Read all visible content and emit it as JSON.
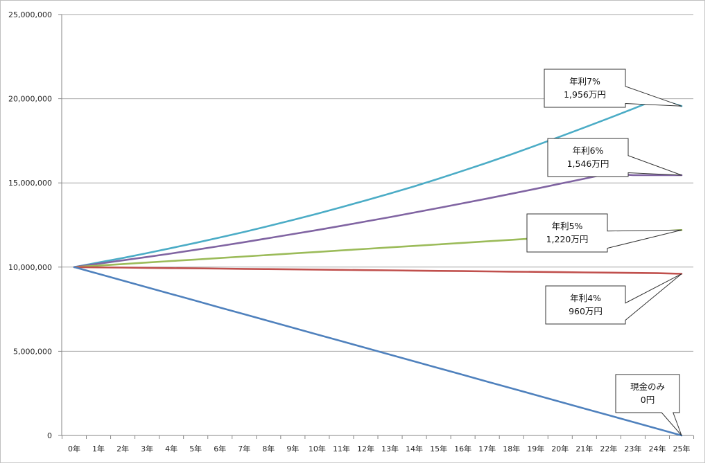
{
  "chart_data": {
    "type": "line",
    "title": "",
    "xlabel": "",
    "ylabel": "",
    "ylim": [
      0,
      25000000
    ],
    "y_ticks": [
      0,
      5000000,
      10000000,
      15000000,
      20000000,
      25000000
    ],
    "y_tick_labels": [
      "0",
      "5,000,000",
      "10,000,000",
      "15,000,000",
      "20,000,000",
      "25,000,000"
    ],
    "categories": [
      "0年",
      "1年",
      "2年",
      "3年",
      "4年",
      "5年",
      "6年",
      "7年",
      "8年",
      "9年",
      "10年",
      "11年",
      "12年",
      "13年",
      "14年",
      "15年",
      "16年",
      "17年",
      "18年",
      "19年",
      "20年",
      "21年",
      "22年",
      "23年",
      "24年",
      "25年"
    ],
    "grid": true,
    "legend": "none",
    "series": [
      {
        "key": "rate7",
        "color": "#4bacc6",
        "values": [
          10000000,
          10270000,
          10540000,
          10830000,
          11130000,
          11440000,
          11760000,
          12090000,
          12440000,
          12800000,
          13170000,
          13560000,
          13960000,
          14370000,
          14800000,
          15250000,
          15720000,
          16200000,
          16700000,
          17220000,
          17750000,
          18290000,
          18840000,
          19400000,
          19980000,
          19560000
        ]
      },
      {
        "key": "rate6",
        "color": "#8064a2",
        "values": [
          10000000,
          10200000,
          10400000,
          10600000,
          10810000,
          11030000,
          11250000,
          11480000,
          11720000,
          11960000,
          12200000,
          12450000,
          12710000,
          12970000,
          13240000,
          13510000,
          13790000,
          14070000,
          14360000,
          14650000,
          14950000,
          15250000,
          15560000,
          15460000,
          15460000,
          15460000
        ]
      },
      {
        "key": "rate5",
        "color": "#9bbb59",
        "values": [
          10000000,
          10090000,
          10180000,
          10270000,
          10360000,
          10450000,
          10540000,
          10630000,
          10720000,
          10810000,
          10900000,
          10990000,
          11080000,
          11170000,
          11260000,
          11350000,
          11440000,
          11530000,
          11620000,
          11710000,
          11800000,
          11880000,
          11960000,
          12040000,
          12120000,
          12200000
        ]
      },
      {
        "key": "rate4",
        "color": "#c0504d",
        "values": [
          10000000,
          9985000,
          9970000,
          9955000,
          9940000,
          9925000,
          9910000,
          9895000,
          9880000,
          9865000,
          9850000,
          9835000,
          9820000,
          9805000,
          9790000,
          9775000,
          9760000,
          9745000,
          9730000,
          9715000,
          9700000,
          9685000,
          9670000,
          9655000,
          9640000,
          9600000
        ]
      },
      {
        "key": "cash",
        "color": "#4f81bd",
        "values": [
          10000000,
          9600000,
          9200000,
          8800000,
          8400000,
          8000000,
          7600000,
          7200000,
          6800000,
          6400000,
          6000000,
          5600000,
          5200000,
          4800000,
          4400000,
          4000000,
          3600000,
          3200000,
          2800000,
          2400000,
          2000000,
          1600000,
          1200000,
          800000,
          400000,
          0
        ]
      }
    ],
    "annotations": [
      {
        "series": "rate7",
        "line1": "年利7%",
        "line2": "1,956万円",
        "point_x": "25年",
        "point_y": 19560000
      },
      {
        "series": "rate6",
        "line1": "年利6%",
        "line2": "1,546万円",
        "point_x": "25年",
        "point_y": 15460000
      },
      {
        "series": "rate5",
        "line1": "年利5%",
        "line2": "1,220万円",
        "point_x": "25年",
        "point_y": 12200000
      },
      {
        "series": "rate4",
        "line1": "年利4%",
        "line2": "960万円",
        "point_x": "25年",
        "point_y": 9600000
      },
      {
        "series": "cash",
        "line1": "現金のみ",
        "line2": "0円",
        "point_x": "25年",
        "point_y": 0
      }
    ]
  }
}
